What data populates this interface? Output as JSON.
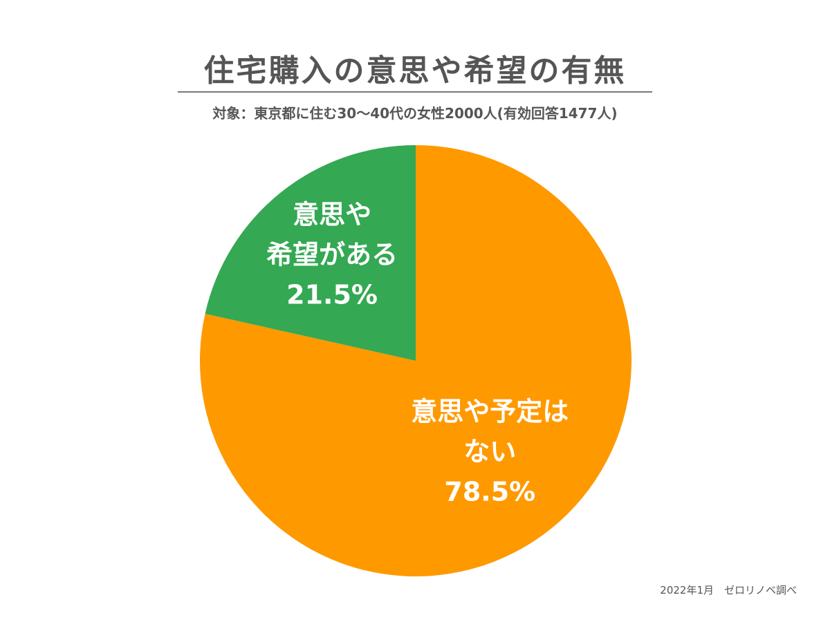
{
  "chart_data": {
    "type": "pie",
    "title": "住宅購入の意思や希望の有無",
    "subtitle": "対象：東京都に住む30～40代の女性2000人(有効回答1477人)",
    "slices": [
      {
        "name": "意思や予定はない",
        "label_lines": [
          "意思や予定は",
          "ない",
          "78.5%"
        ],
        "value": 78.5,
        "color": "#FF9900"
      },
      {
        "name": "意思や希望がある",
        "label_lines": [
          "意思や",
          "希望がある",
          "21.5%"
        ],
        "value": 21.5,
        "color": "#34A853"
      }
    ],
    "start_angle": "12 o'clock",
    "direction": "clockwise",
    "legend": "none"
  },
  "footer": {
    "note": "2022年1月　ゼロリノベ調べ"
  }
}
